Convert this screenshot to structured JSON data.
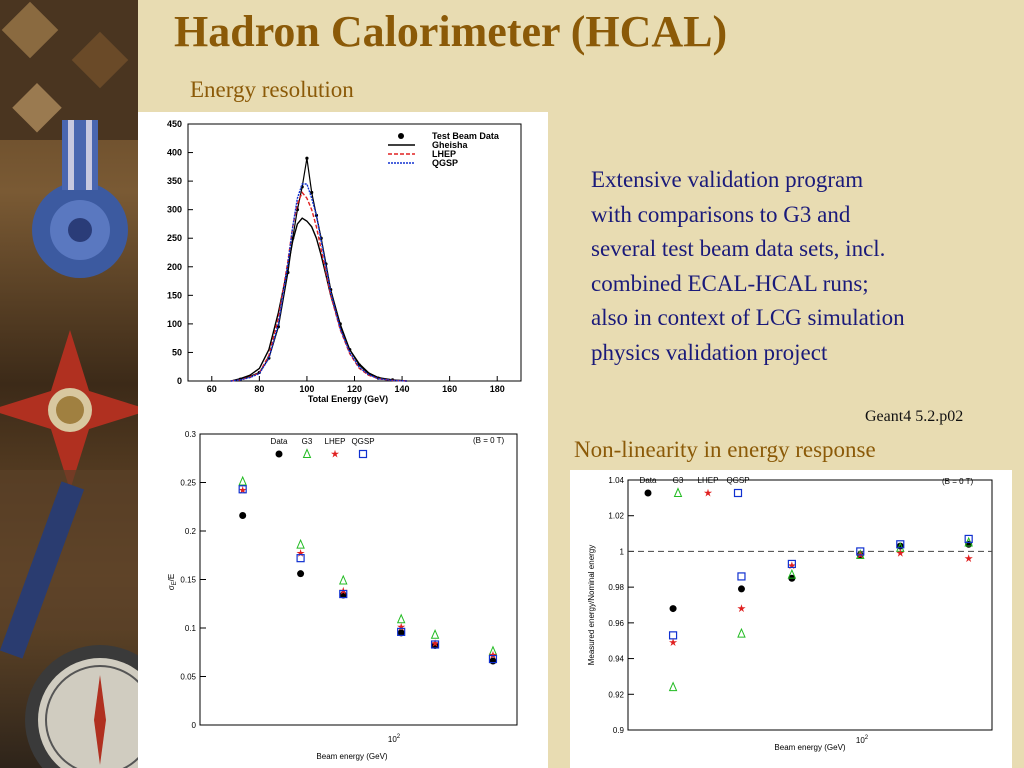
{
  "slide": {
    "title": "Hadron Calorimeter (HCAL)",
    "subtitle_energy": "Energy resolution",
    "subtitle_nonlinearity": "Non-linearity in energy response",
    "description_lines": [
      "Extensive validation program",
      "with comparisons to G3 and",
      "several test beam data sets, incl.",
      "combined ECAL-HCAL runs;",
      "also in context of LCG simulation",
      "physics validation project"
    ],
    "version": "Geant4 5.2.p02"
  },
  "colors": {
    "title": "#8b5a08",
    "body_text": "#1a1a7a",
    "background": "#e8dcb2"
  },
  "chart_data": [
    {
      "type": "line",
      "xlabel": "Total Energy (GeV)",
      "xlim": [
        50,
        190
      ],
      "ylim": [
        0,
        450
      ],
      "x_ticks": [
        "60",
        "80",
        "100",
        "120",
        "140",
        "160",
        "180"
      ],
      "y_ticks": [
        "0",
        "50",
        "100",
        "150",
        "200",
        "250",
        "300",
        "350",
        "400",
        "450"
      ],
      "legend_position": "top-right",
      "series": [
        {
          "name": "Test Beam Data",
          "color": "#000000",
          "x": [
            68,
            72,
            76,
            80,
            84,
            88,
            92,
            94,
            96,
            98,
            100,
            102,
            104,
            106,
            108,
            110,
            114,
            118,
            122,
            126,
            130,
            136,
            142
          ],
          "values": [
            0,
            3,
            8,
            15,
            40,
            95,
            190,
            250,
            300,
            340,
            390,
            330,
            290,
            250,
            205,
            160,
            100,
            55,
            28,
            12,
            5,
            2,
            0
          ]
        },
        {
          "name": "Gheisha",
          "color": "#000000",
          "x": [
            68,
            72,
            76,
            80,
            84,
            88,
            92,
            94,
            96,
            98,
            100,
            102,
            104,
            106,
            108,
            110,
            114,
            118,
            122,
            126,
            130,
            136,
            142
          ],
          "values": [
            0,
            4,
            10,
            22,
            55,
            120,
            200,
            245,
            275,
            285,
            280,
            270,
            250,
            220,
            185,
            150,
            95,
            55,
            30,
            14,
            6,
            2,
            0
          ]
        },
        {
          "name": "LHEP",
          "color": "#e02020",
          "x": [
            68,
            72,
            76,
            80,
            84,
            88,
            92,
            94,
            96,
            98,
            100,
            102,
            104,
            106,
            108,
            110,
            114,
            118,
            122,
            126,
            130,
            136,
            142
          ],
          "values": [
            0,
            2,
            7,
            14,
            45,
            110,
            210,
            270,
            310,
            330,
            320,
            300,
            270,
            230,
            190,
            150,
            90,
            48,
            22,
            10,
            4,
            1,
            0
          ]
        },
        {
          "name": "QGSP",
          "color": "#1030d0",
          "x": [
            68,
            72,
            76,
            80,
            84,
            88,
            92,
            94,
            96,
            98,
            100,
            102,
            104,
            106,
            108,
            110,
            114,
            118,
            122,
            126,
            130,
            136,
            142
          ],
          "values": [
            0,
            2,
            6,
            13,
            40,
            100,
            205,
            270,
            320,
            345,
            345,
            320,
            290,
            245,
            200,
            155,
            92,
            50,
            24,
            11,
            4,
            1,
            0
          ]
        }
      ]
    },
    {
      "type": "scatter",
      "xlabel": "Beam energy (GeV)",
      "ylabel": "σ_E/E",
      "annotation": "(B = 0 T)",
      "x_scale": "log",
      "x_tick_label": "10^2",
      "ylim": [
        0,
        0.3
      ],
      "y_ticks": [
        "0",
        "0.05",
        "0.1",
        "0.15",
        "0.2",
        "0.25",
        "0.3"
      ],
      "legend_position": "top",
      "series": [
        {
          "name": "Data",
          "color": "#000000",
          "marker": "filled-circle",
          "x": [
            15,
            30,
            50,
            100,
            150,
            300
          ],
          "values": [
            0.216,
            0.156,
            0.134,
            0.095,
            0.082,
            0.066
          ]
        },
        {
          "name": "G3",
          "color": "#22bb22",
          "marker": "open-triangle",
          "x": [
            15,
            30,
            50,
            100,
            150,
            300
          ],
          "values": [
            0.251,
            0.186,
            0.149,
            0.109,
            0.093,
            0.076
          ]
        },
        {
          "name": "LHEP",
          "color": "#e02020",
          "marker": "star",
          "x": [
            15,
            30,
            50,
            100,
            150,
            300
          ],
          "values": [
            0.242,
            0.177,
            0.138,
            0.101,
            0.084,
            0.072
          ]
        },
        {
          "name": "QGSP",
          "color": "#1030d0",
          "marker": "open-square",
          "x": [
            15,
            30,
            50,
            100,
            150,
            300
          ],
          "values": [
            0.243,
            0.172,
            0.135,
            0.096,
            0.083,
            0.068
          ]
        }
      ]
    },
    {
      "type": "scatter",
      "xlabel": "Beam energy (GeV)",
      "ylabel": "Measured energy/Nominal energy",
      "annotation": "(B = 0 T)",
      "x_scale": "log",
      "x_tick_label": "10^2",
      "ylim": [
        0.9,
        1.04
      ],
      "y_ticks": [
        "0.9",
        "0.92",
        "0.94",
        "0.96",
        "0.98",
        "1",
        "1.02",
        "1.04"
      ],
      "reference_line": 1.0,
      "legend_position": "top",
      "series": [
        {
          "name": "Data",
          "color": "#000000",
          "marker": "filled-circle",
          "x": [
            15,
            30,
            50,
            100,
            150,
            300
          ],
          "values": [
            0.968,
            0.979,
            0.985,
            0.998,
            1.003,
            1.004
          ]
        },
        {
          "name": "G3",
          "color": "#22bb22",
          "marker": "open-triangle",
          "x": [
            15,
            30,
            50,
            100,
            150,
            300
          ],
          "values": [
            0.924,
            0.954,
            0.987,
            0.998,
            1.002,
            1.005
          ]
        },
        {
          "name": "LHEP",
          "color": "#e02020",
          "marker": "star",
          "x": [
            15,
            30,
            50,
            100,
            150,
            300
          ],
          "values": [
            0.949,
            0.968,
            0.992,
            0.998,
            0.999,
            0.996
          ]
        },
        {
          "name": "QGSP",
          "color": "#1030d0",
          "marker": "open-square",
          "x": [
            15,
            30,
            50,
            100,
            150,
            300
          ],
          "values": [
            0.953,
            0.986,
            0.993,
            1.0,
            1.004,
            1.007
          ]
        }
      ]
    }
  ]
}
